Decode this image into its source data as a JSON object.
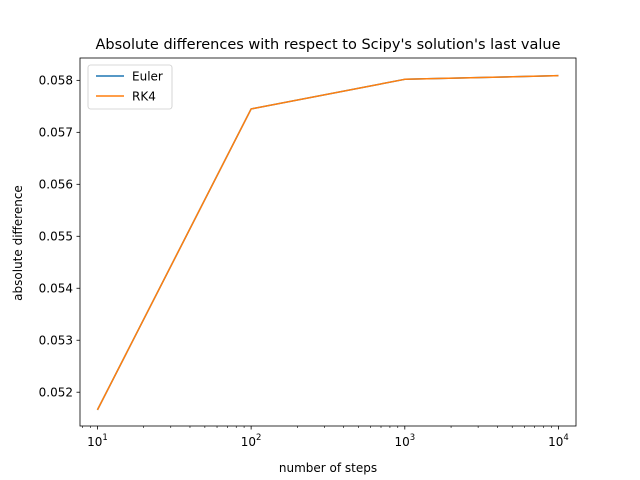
{
  "chart_data": {
    "type": "line",
    "title": "Absolute differences with respect to Scipy's solution's last value",
    "xlabel": "number of steps",
    "ylabel": "absolute difference",
    "xscale": "log",
    "xlim": [
      7.7,
      13000
    ],
    "ylim": [
      0.05135,
      0.05843
    ],
    "x": [
      10,
      100,
      1000,
      10000
    ],
    "x_ticks": [
      {
        "value": 10,
        "base": "10",
        "exp": "1"
      },
      {
        "value": 100,
        "base": "10",
        "exp": "2"
      },
      {
        "value": 1000,
        "base": "10",
        "exp": "3"
      },
      {
        "value": 10000,
        "base": "10",
        "exp": "4"
      }
    ],
    "y_ticks": [
      {
        "value": 0.052,
        "label": "0.052"
      },
      {
        "value": 0.053,
        "label": "0.053"
      },
      {
        "value": 0.054,
        "label": "0.054"
      },
      {
        "value": 0.055,
        "label": "0.055"
      },
      {
        "value": 0.056,
        "label": "0.056"
      },
      {
        "value": 0.057,
        "label": "0.057"
      },
      {
        "value": 0.058,
        "label": "0.058"
      }
    ],
    "series": [
      {
        "name": "Euler",
        "color": "#1f77b4",
        "values": [
          0.05166,
          0.05745,
          0.05802,
          0.05809
        ]
      },
      {
        "name": "RK4",
        "color": "#ff7f0e",
        "values": [
          0.05166,
          0.05745,
          0.05802,
          0.05809
        ]
      }
    ],
    "legend": "top-left",
    "grid": false
  }
}
